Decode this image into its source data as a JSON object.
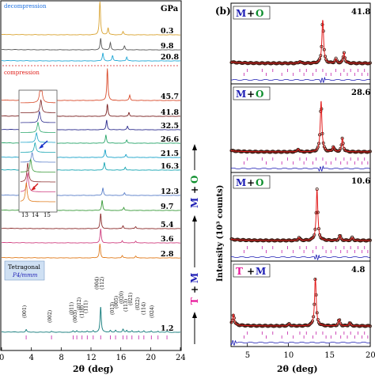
{
  "figure": {
    "panel_b_label": "(b)",
    "left_xlabel": "2θ (deg)",
    "right_xlabel": "2θ (deg)",
    "right_ylabel": "Intensity (10³ counts)",
    "pressure_unit": "GPa",
    "decompression_label": "decompression",
    "compression_label": "compression",
    "tetragonal_label": "Tetragonal",
    "space_group_label": "P4/mmm",
    "inset_ticks": [
      "13",
      "14",
      "15"
    ],
    "phase_labels": {
      "m_o": [
        "M",
        "+",
        "O"
      ],
      "t_m": [
        "T",
        "+",
        "M"
      ]
    },
    "colors": {
      "phase_T": "#e8169a",
      "phase_M": "#1d1db4",
      "phase_O": "#0f8f2e",
      "fit_line": "#e21a1a",
      "observed": "#3b1a12",
      "tick_marks": "#c21ea8",
      "decompression_text": "#1b6fe0",
      "compression_text": "#e0201a",
      "separator": "#d22020",
      "arrow_blue": "#1730c8",
      "arrow_red": "#d41a1a"
    }
  },
  "chart_data": [
    {
      "type": "line",
      "title": "",
      "xlabel": "2θ (deg)",
      "ylabel": "",
      "xlim": [
        0,
        24
      ],
      "xticks": [
        "0",
        "4",
        "8",
        "12",
        "16",
        "20",
        "24"
      ],
      "x_label_positions": [
        0,
        4,
        8,
        12,
        16,
        20,
        24
      ],
      "note": "stacked XRD patterns, offset vertically",
      "series": [
        {
          "name": "0.3",
          "color": "#d9a330",
          "peaks": [
            [
              13.2,
              8
            ],
            [
              14.3,
              1.6
            ],
            [
              16.3,
              0.8
            ]
          ]
        },
        {
          "name": "9.8",
          "color": "#555555",
          "peaks": [
            [
              13.3,
              3
            ],
            [
              14.6,
              1.8
            ],
            [
              16.5,
              1
            ]
          ]
        },
        {
          "name": "20.8",
          "color": "#1fa7d6",
          "peaks": [
            [
              13.6,
              2
            ],
            [
              14.9,
              1.4
            ],
            [
              16.8,
              1
            ]
          ]
        },
        {
          "name": "45.7",
          "color": "#d94b2b",
          "peaks": [
            [
              14.2,
              9
            ],
            [
              17.2,
              1.5
            ]
          ]
        },
        {
          "name": "41.8",
          "color": "#7a1f1f",
          "peaks": [
            [
              14.2,
              4
            ],
            [
              17.1,
              1.3
            ]
          ]
        },
        {
          "name": "32.5",
          "color": "#2f2f8f",
          "peaks": [
            [
              14.1,
              3.5
            ],
            [
              16.9,
              1.3
            ]
          ]
        },
        {
          "name": "26.6",
          "color": "#2aa66b",
          "peaks": [
            [
              14.0,
              3.2
            ],
            [
              16.8,
              1.2
            ]
          ]
        },
        {
          "name": "21.5",
          "color": "#1aa3c9",
          "peaks": [
            [
              13.9,
              3
            ],
            [
              16.7,
              1.2
            ]
          ]
        },
        {
          "name": "16.3",
          "color": "#18a6b3",
          "peaks": [
            [
              13.8,
              3
            ],
            [
              16.6,
              1.2
            ]
          ]
        },
        {
          "name": "12.3",
          "color": "#5a7fc9",
          "peaks": [
            [
              13.6,
              3
            ],
            [
              16.5,
              1.1
            ]
          ]
        },
        {
          "name": "9.7",
          "color": "#3a9a3a",
          "peaks": [
            [
              13.5,
              4
            ],
            [
              16.4,
              1.2
            ]
          ]
        },
        {
          "name": "5.4",
          "color": "#8b2a2a",
          "peaks": [
            [
              13.3,
              6
            ],
            [
              16.3,
              1.2
            ],
            [
              18,
              0.8
            ]
          ]
        },
        {
          "name": "3.6",
          "color": "#d04080",
          "peaks": [
            [
              13.3,
              6
            ],
            [
              16.2,
              1
            ],
            [
              18,
              0.8
            ]
          ]
        },
        {
          "name": "2.8",
          "color": "#e07a1a",
          "peaks": [
            [
              13.2,
              6
            ],
            [
              16.2,
              1
            ],
            [
              18,
              0.8
            ]
          ]
        },
        {
          "name": "1.2",
          "color": "#117a7a",
          "peaks": [
            [
              3.3,
              1
            ],
            [
              6.7,
              0.4
            ],
            [
              9.6,
              0.5
            ],
            [
              10.1,
              0.6
            ],
            [
              10.8,
              0.4
            ],
            [
              11.5,
              0.5
            ],
            [
              12.3,
              0.6
            ],
            [
              13.3,
              10
            ],
            [
              14.6,
              0.7
            ],
            [
              15.3,
              0.8
            ],
            [
              16.3,
              1.2
            ],
            [
              16.8,
              0.8
            ],
            [
              17.5,
              0.6
            ],
            [
              18.4,
              0.5
            ],
            [
              19.1,
              0.6
            ],
            [
              20.1,
              0.5
            ],
            [
              21,
              0.5
            ],
            [
              22.2,
              0.4
            ]
          ]
        }
      ],
      "annotations": [
        "(001)",
        "(002)",
        "(011)",
        "(003)",
        "(012)",
        "(110)",
        "(111)",
        "(004)",
        "(112)",
        "(013)",
        "(005)",
        "(020)",
        "(113)",
        "(021)",
        "(022)",
        "(114)",
        "(024)"
      ],
      "phase_sequence": [
        "T",
        "+",
        "M",
        "M",
        "+",
        "O"
      ]
    },
    {
      "type": "scatter",
      "title": "",
      "xlabel": "2θ (deg)",
      "ylabel": "Intensity (10³ counts)",
      "xlim": [
        3,
        20
      ],
      "xticks": [
        "5",
        "10",
        "15",
        "20"
      ],
      "x_label_positions": [
        5,
        10,
        15,
        20
      ],
      "note": "Rietveld refinements: observed (circles), calculated (red line), difference (blue), reflection ticks (magenta)",
      "panels": [
        {
          "pressure": "41.8",
          "phase_label": [
            "M",
            "+",
            "O"
          ],
          "peaks": [
            [
              14.2,
              9
            ],
            [
              15.8,
              0.9
            ],
            [
              16.8,
              2.2
            ],
            [
              11.4,
              0.4
            ]
          ]
        },
        {
          "pressure": "28.6",
          "phase_label": [
            "M",
            "+",
            "O"
          ],
          "peaks": [
            [
              14.0,
              9
            ],
            [
              15.5,
              0.9
            ],
            [
              16.6,
              2.4
            ],
            [
              11.2,
              0.5
            ]
          ]
        },
        {
          "pressure": "10.6",
          "phase_label": [
            "M",
            "+",
            "O"
          ],
          "peaks": [
            [
              13.5,
              9
            ],
            [
              16.3,
              0.9
            ],
            [
              11.3,
              0.5
            ],
            [
              17.8,
              0.5
            ]
          ]
        },
        {
          "pressure": "4.8",
          "phase_label": [
            "T",
            "+",
            "M"
          ],
          "peaks": [
            [
              3.3,
              2
            ],
            [
              13.3,
              9
            ],
            [
              16.2,
              1.2
            ],
            [
              17.5,
              0.6
            ],
            [
              10.1,
              0.4
            ]
          ]
        }
      ]
    }
  ]
}
